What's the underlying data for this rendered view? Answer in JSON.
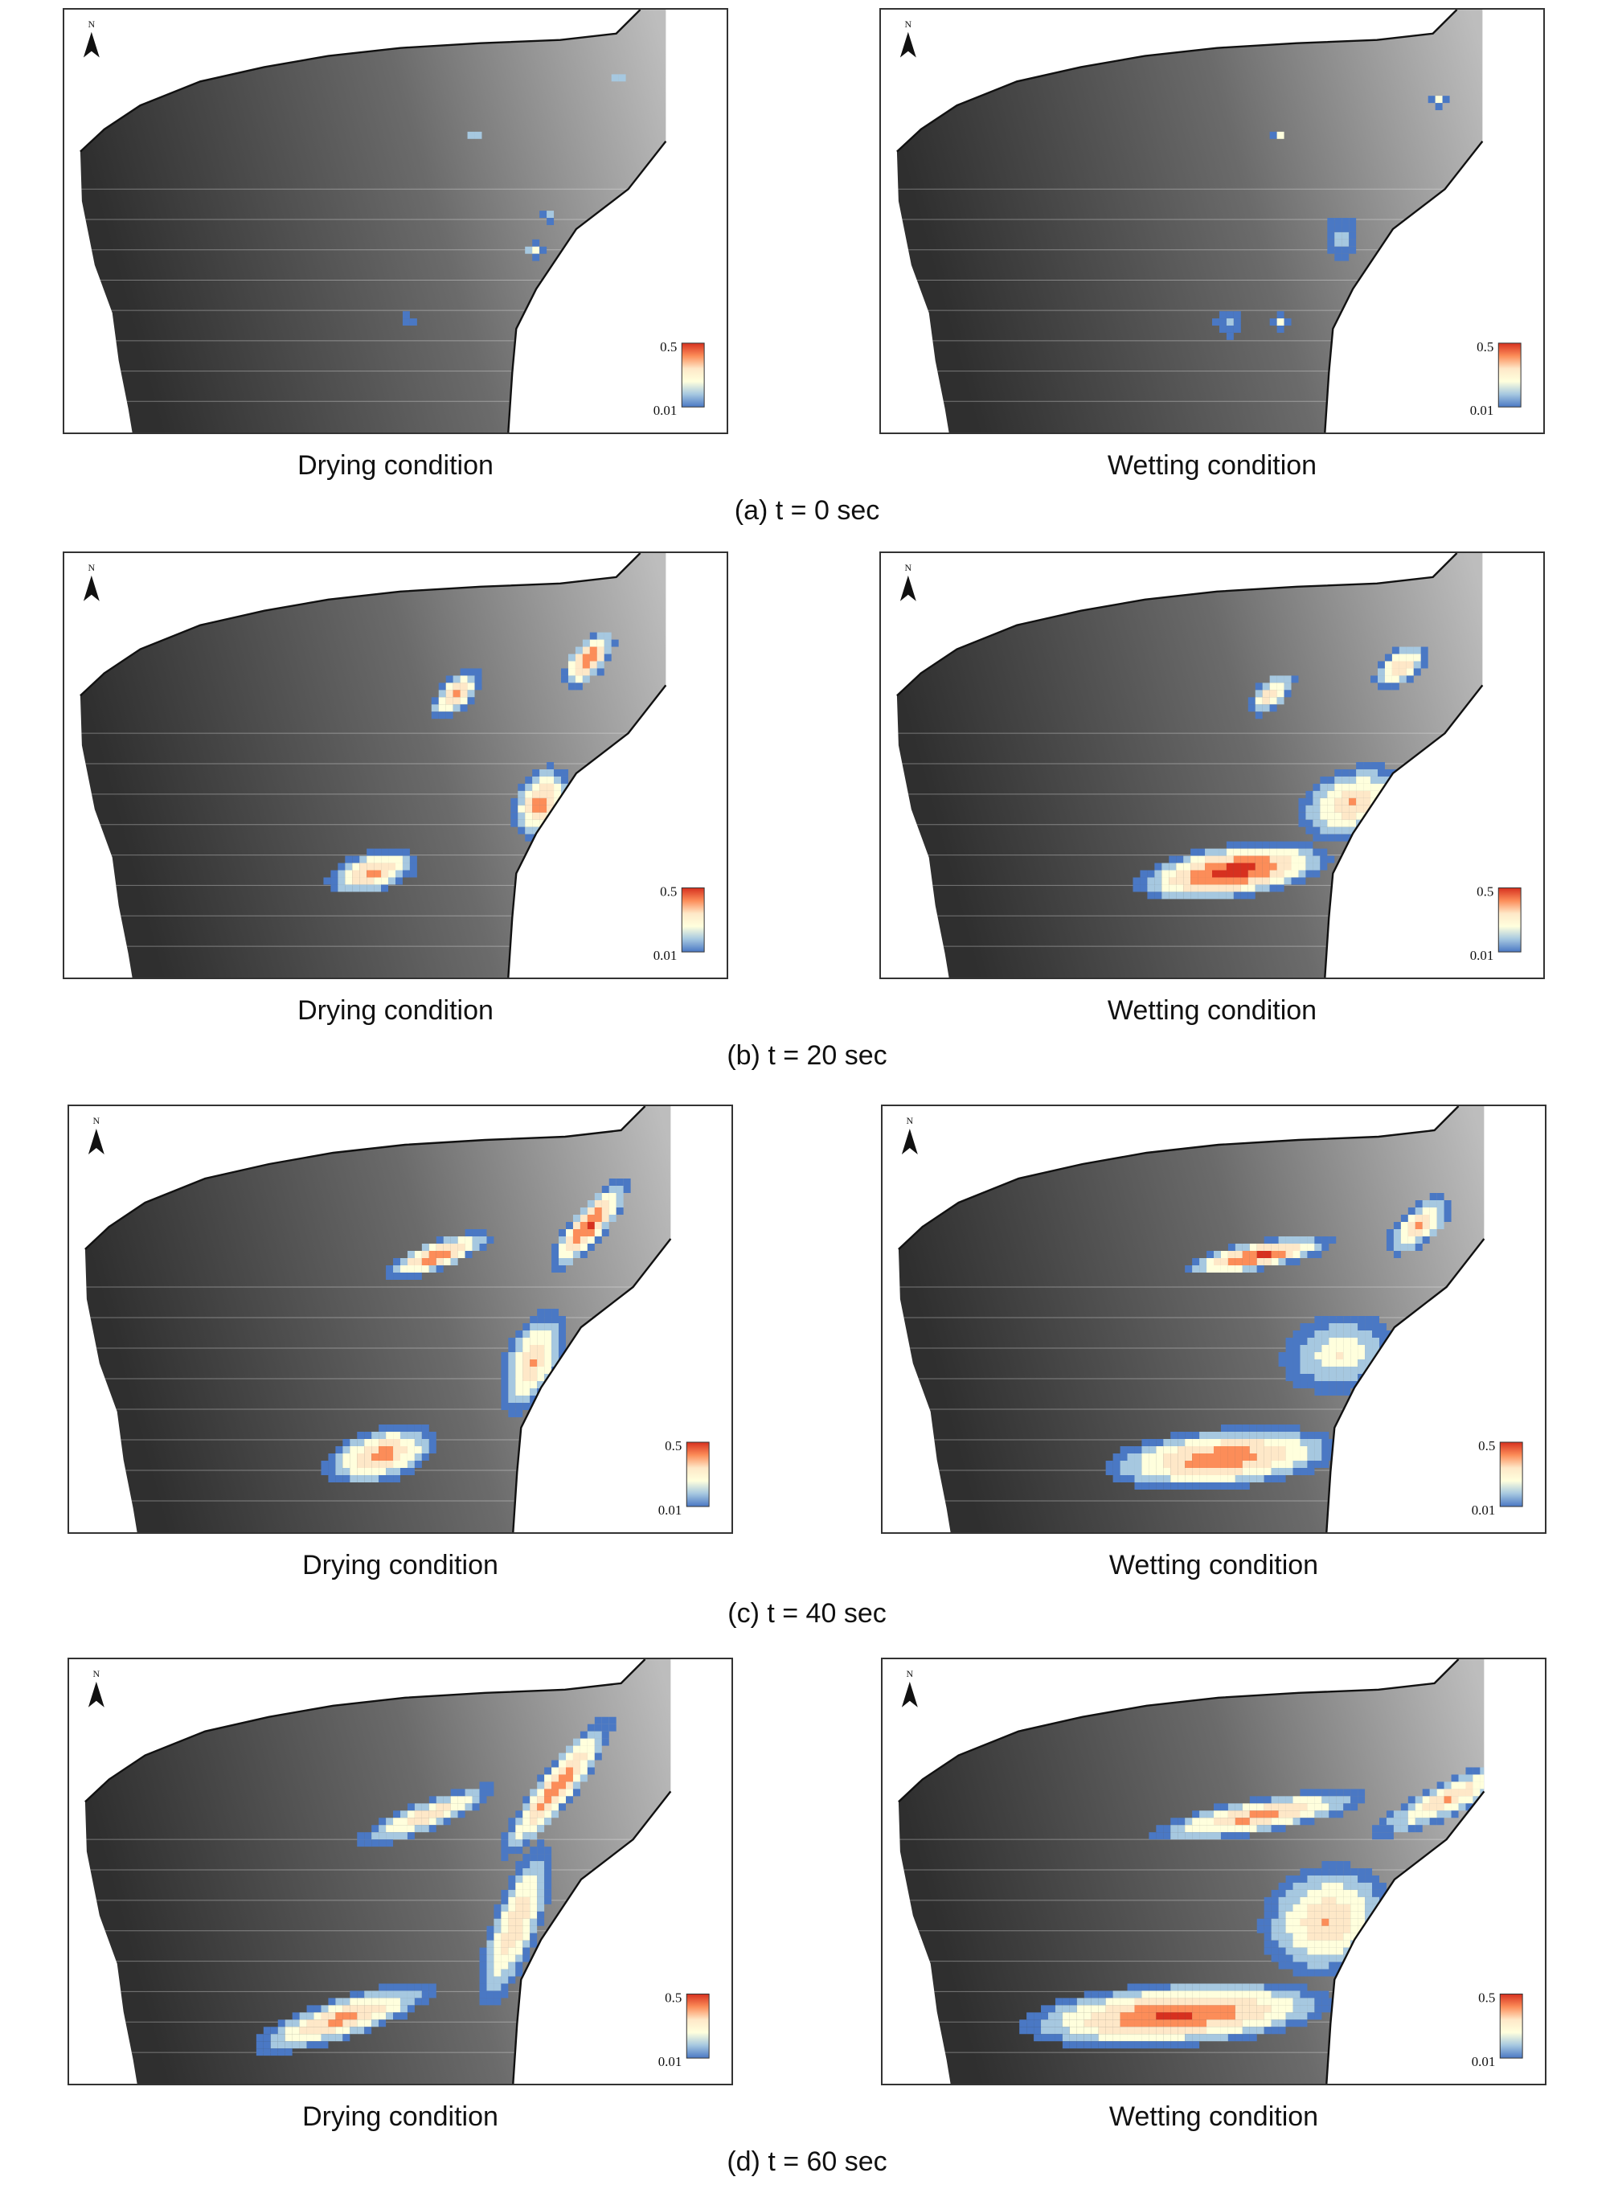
{
  "north_label": "N",
  "legend": {
    "max_label": "0.5",
    "min_label": "0.01",
    "colors": [
      "#d7301f",
      "#fc8d59",
      "#fee8c8",
      "#ffffdd",
      "#a6c8e0",
      "#4a78c4"
    ]
  },
  "colors": {
    "terrain_dark": "#2f2f2f",
    "terrain_light": "#bdbdbd",
    "outline": "#111111"
  },
  "rows": [
    {
      "caption": "(a) t = 0 sec",
      "panels": [
        {
          "label": "Drying condition"
        },
        {
          "label": "Wetting condition"
        }
      ]
    },
    {
      "caption": "(b) t = 20 sec",
      "panels": [
        {
          "label": "Drying condition"
        },
        {
          "label": "Wetting condition"
        }
      ]
    },
    {
      "caption": "(c) t = 40 sec",
      "panels": [
        {
          "label": "Drying condition"
        },
        {
          "label": "Wetting condition"
        }
      ]
    },
    {
      "caption": "(d) t = 60 sec",
      "panels": [
        {
          "label": "Drying condition"
        },
        {
          "label": "Wetting condition"
        }
      ]
    }
  ]
}
